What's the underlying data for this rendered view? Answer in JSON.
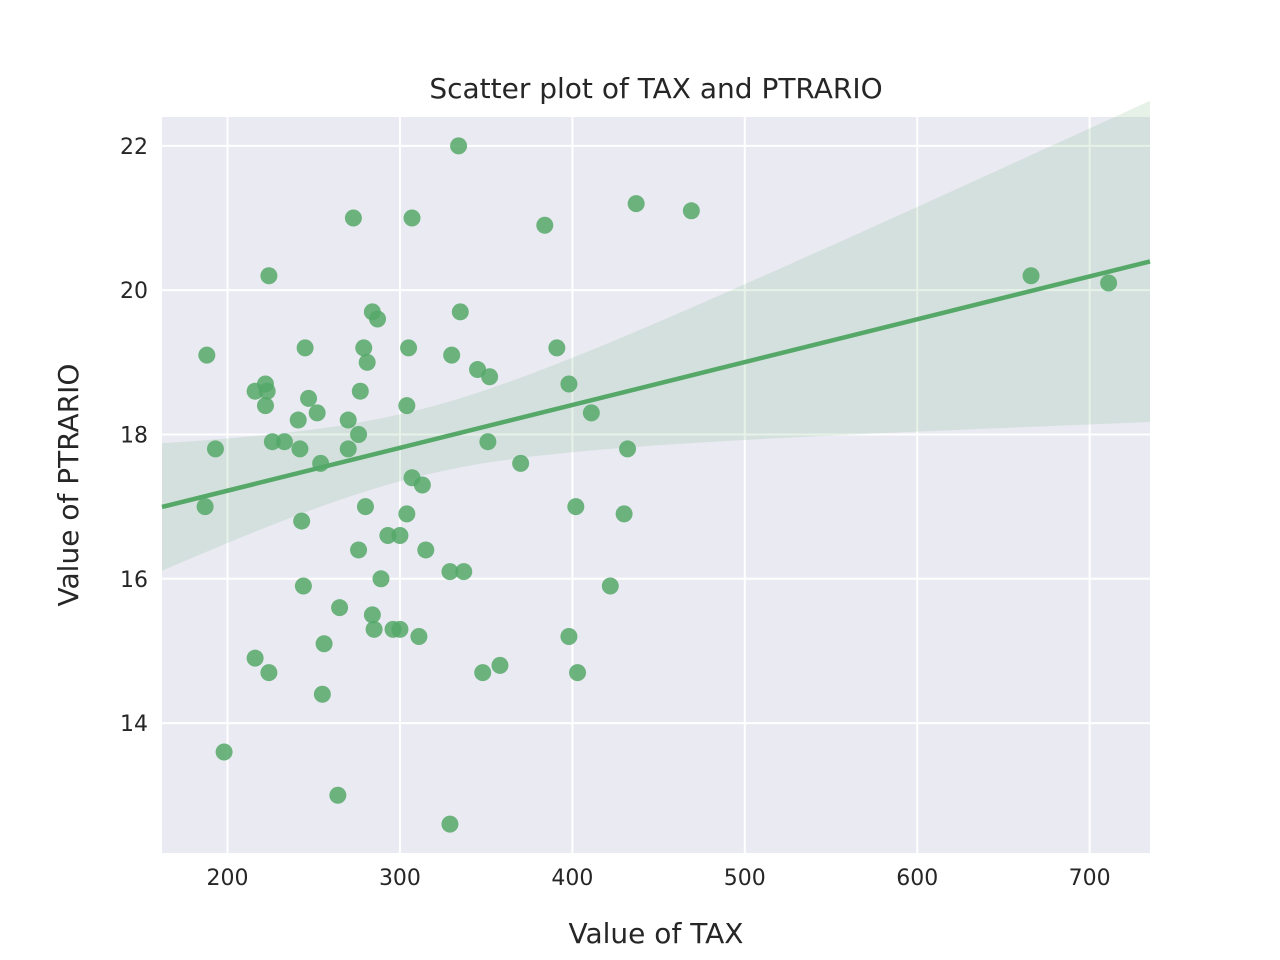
{
  "chart_data": {
    "type": "scatter",
    "title": "Scatter plot of TAX and PTRARIO",
    "xlabel": "Value of TAX",
    "ylabel": "Value of PTRARIO",
    "xlim": [
      162,
      735
    ],
    "ylim": [
      12.2,
      22.4
    ],
    "xticks": [
      200,
      300,
      400,
      500,
      600,
      700
    ],
    "yticks": [
      14,
      16,
      18,
      20,
      22
    ],
    "grid": true,
    "colors": {
      "background": "#EAEAF2",
      "grid": "#FFFFFF",
      "points": "#55A868",
      "band": "#55A868"
    },
    "points": [
      {
        "x": 187,
        "y": 17.0
      },
      {
        "x": 188,
        "y": 19.1
      },
      {
        "x": 193,
        "y": 17.8
      },
      {
        "x": 198,
        "y": 13.6
      },
      {
        "x": 216,
        "y": 14.9
      },
      {
        "x": 216,
        "y": 18.6
      },
      {
        "x": 222,
        "y": 18.7
      },
      {
        "x": 222,
        "y": 18.4
      },
      {
        "x": 223,
        "y": 18.6
      },
      {
        "x": 224,
        "y": 20.2
      },
      {
        "x": 224,
        "y": 14.7
      },
      {
        "x": 226,
        "y": 17.9
      },
      {
        "x": 233,
        "y": 17.9
      },
      {
        "x": 241,
        "y": 18.2
      },
      {
        "x": 242,
        "y": 17.8
      },
      {
        "x": 243,
        "y": 16.8
      },
      {
        "x": 244,
        "y": 15.9
      },
      {
        "x": 245,
        "y": 19.2
      },
      {
        "x": 247,
        "y": 18.5
      },
      {
        "x": 252,
        "y": 18.3
      },
      {
        "x": 254,
        "y": 17.6
      },
      {
        "x": 255,
        "y": 14.4
      },
      {
        "x": 256,
        "y": 15.1
      },
      {
        "x": 264,
        "y": 13.0
      },
      {
        "x": 265,
        "y": 15.6
      },
      {
        "x": 270,
        "y": 18.2
      },
      {
        "x": 270,
        "y": 17.8
      },
      {
        "x": 273,
        "y": 21.0
      },
      {
        "x": 276,
        "y": 18.0
      },
      {
        "x": 276,
        "y": 16.4
      },
      {
        "x": 277,
        "y": 18.6
      },
      {
        "x": 279,
        "y": 19.2
      },
      {
        "x": 280,
        "y": 17.0
      },
      {
        "x": 281,
        "y": 19.0
      },
      {
        "x": 284,
        "y": 19.7
      },
      {
        "x": 284,
        "y": 15.5
      },
      {
        "x": 285,
        "y": 15.3
      },
      {
        "x": 287,
        "y": 19.6
      },
      {
        "x": 289,
        "y": 16.0
      },
      {
        "x": 293,
        "y": 16.6
      },
      {
        "x": 296,
        "y": 15.3
      },
      {
        "x": 300,
        "y": 16.6
      },
      {
        "x": 300,
        "y": 15.3
      },
      {
        "x": 304,
        "y": 18.4
      },
      {
        "x": 304,
        "y": 16.9
      },
      {
        "x": 305,
        "y": 19.2
      },
      {
        "x": 307,
        "y": 21.0
      },
      {
        "x": 307,
        "y": 17.4
      },
      {
        "x": 311,
        "y": 15.2
      },
      {
        "x": 313,
        "y": 17.3
      },
      {
        "x": 315,
        "y": 16.4
      },
      {
        "x": 329,
        "y": 12.6
      },
      {
        "x": 329,
        "y": 16.1
      },
      {
        "x": 330,
        "y": 19.1
      },
      {
        "x": 334,
        "y": 22.0
      },
      {
        "x": 335,
        "y": 19.7
      },
      {
        "x": 337,
        "y": 16.1
      },
      {
        "x": 345,
        "y": 18.9
      },
      {
        "x": 348,
        "y": 14.7
      },
      {
        "x": 351,
        "y": 17.9
      },
      {
        "x": 352,
        "y": 18.8
      },
      {
        "x": 358,
        "y": 14.8
      },
      {
        "x": 370,
        "y": 17.6
      },
      {
        "x": 384,
        "y": 20.9
      },
      {
        "x": 391,
        "y": 19.2
      },
      {
        "x": 398,
        "y": 18.7
      },
      {
        "x": 398,
        "y": 15.2
      },
      {
        "x": 402,
        "y": 17.0
      },
      {
        "x": 403,
        "y": 14.7
      },
      {
        "x": 411,
        "y": 18.3
      },
      {
        "x": 422,
        "y": 15.9
      },
      {
        "x": 430,
        "y": 16.9
      },
      {
        "x": 432,
        "y": 17.8
      },
      {
        "x": 437,
        "y": 21.2
      },
      {
        "x": 469,
        "y": 21.1
      },
      {
        "x": 666,
        "y": 20.2
      },
      {
        "x": 711,
        "y": 20.1
      }
    ],
    "regression": {
      "slope": 0.00594,
      "intercept": 16.033
    }
  }
}
